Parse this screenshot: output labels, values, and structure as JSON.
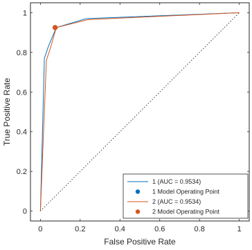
{
  "chart_data": {
    "type": "line",
    "title": "",
    "xlabel": "False Positive Rate",
    "ylabel": "True Positive Rate",
    "xlim": [
      -0.05,
      1.05
    ],
    "ylim": [
      -0.05,
      1.05
    ],
    "x_ticks": [
      0,
      0.2,
      0.4,
      0.6,
      0.8,
      1
    ],
    "x_tick_labels": [
      "0",
      "0.2",
      "0.4",
      "0.6",
      "0.8",
      "1"
    ],
    "y_ticks": [
      0,
      0.2,
      0.4,
      0.6,
      0.8,
      1
    ],
    "y_tick_labels": [
      "0",
      "0.2",
      "0.4",
      "0.6",
      "0.8",
      "1"
    ],
    "grid": false,
    "legend_position": "bottom-right",
    "series": [
      {
        "name": "1 (AUC = 0.9534)",
        "color": "#0072BD",
        "x": [
          0,
          0.02,
          0.04,
          0.08,
          0.23,
          1
        ],
        "y": [
          0,
          0.77,
          0.83,
          0.925,
          0.97,
          1
        ]
      },
      {
        "name": "2 (AUC = 0.9534)",
        "color": "#D95319",
        "x": [
          0,
          0.03,
          0.05,
          0.08,
          0.24,
          1
        ],
        "y": [
          0,
          0.76,
          0.82,
          0.925,
          0.965,
          1
        ]
      }
    ],
    "operating_points": [
      {
        "name": "1 Model Operating Point",
        "color": "#0072BD",
        "x": 0.074,
        "y": 0.925
      },
      {
        "name": "2 Model Operating Point",
        "color": "#D95319",
        "x": 0.074,
        "y": 0.925
      }
    ],
    "reference_line": {
      "x": [
        0,
        1
      ],
      "y": [
        0,
        1
      ],
      "style": "dotted",
      "color": "#262626"
    }
  }
}
